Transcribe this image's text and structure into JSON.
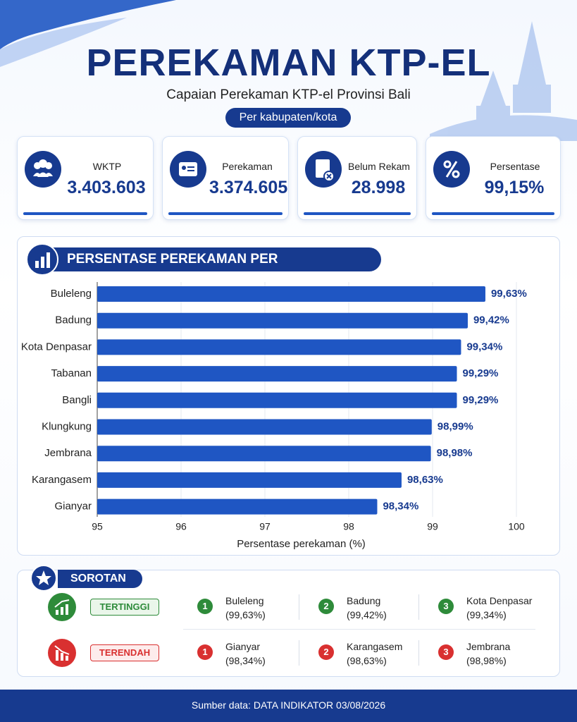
{
  "header": {
    "title": "PEREKAMAN KTP-EL",
    "subtitle": "Capaian Perekaman KTP-el Provinsi Bali",
    "badge": "Per kabupaten/kota"
  },
  "stats": [
    {
      "label": "WKTP",
      "value": "3.403.603"
    },
    {
      "label": "Perekaman",
      "value": "3.374.605"
    },
    {
      "label": "Belum Rekam",
      "value": "28.998"
    },
    {
      "label": "Persentase",
      "value": "99,15%"
    }
  ],
  "chart_data": {
    "type": "bar",
    "orientation": "horizontal",
    "title": "PERSENTASE PEREKAMAN PER KABUPATEN/KOTA",
    "categories": [
      "Buleleng",
      "Badung",
      "Kota Denpasar",
      "Tabanan",
      "Bangli",
      "Klungkung",
      "Jembrana",
      "Karangasem",
      "Gianyar"
    ],
    "values": [
      99.63,
      99.42,
      99.34,
      99.29,
      99.29,
      98.99,
      98.98,
      98.63,
      98.34
    ],
    "value_labels": [
      "99,63%",
      "99,42%",
      "99,34%",
      "99,29%",
      "99,29%",
      "98,99%",
      "98,98%",
      "98,63%",
      "98,34%"
    ],
    "xlim": [
      95,
      100
    ],
    "xticks": [
      95,
      96,
      97,
      98,
      99,
      100
    ],
    "xlabel": "Persentase perekaman (%)",
    "color": "#1f56c3",
    "grid": true
  },
  "highlights": {
    "title": "SOROTAN",
    "rows": [
      {
        "label": "TERTINGGI",
        "items": [
          {
            "rank": 1,
            "name": "Buleleng",
            "value": "(99,63%)"
          },
          {
            "rank": 2,
            "name": "Badung",
            "value": "(99,42%)"
          },
          {
            "rank": 3,
            "name": "Kota Denpasar",
            "value": "(99,34%)"
          }
        ]
      },
      {
        "label": "TERENDAH",
        "items": [
          {
            "rank": 1,
            "name": "Gianyar",
            "value": "(98,34%)"
          },
          {
            "rank": 2,
            "name": "Karangasem",
            "value": "(98,63%)"
          },
          {
            "rank": 3,
            "name": "Jembrana",
            "value": "(98,98%)"
          }
        ]
      }
    ]
  },
  "footer": "Sumber data: DATA INDIKATOR 03/08/2026"
}
